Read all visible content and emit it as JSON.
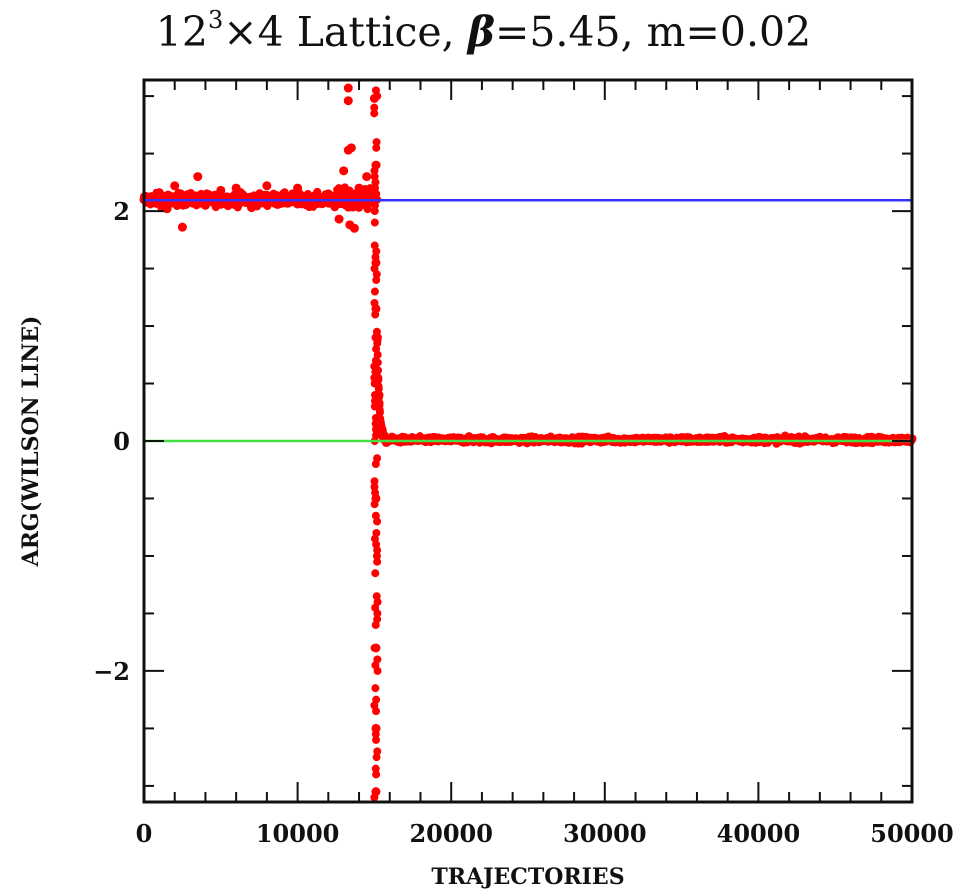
{
  "title_parts": {
    "prefix": "12",
    "superscript": "3",
    "middle": "×4 Lattice, ",
    "greek": "β",
    "suffix": "=5.45, m=0.02"
  },
  "chart_data": {
    "type": "scatter",
    "title": "12³×4 Lattice, β=5.45, m=0.02",
    "xlabel": "TRAJECTORIES",
    "ylabel": "ARG(WILSON LINE)",
    "xlim": [
      0,
      50000
    ],
    "ylim": [
      -3.14,
      3.14
    ],
    "xticks": [
      0,
      10000,
      20000,
      30000,
      40000,
      50000
    ],
    "xtick_labels": [
      "0",
      "10000",
      "20000",
      "30000",
      "40000",
      "50000"
    ],
    "yticks": [
      -2,
      0,
      2
    ],
    "ytick_labels": [
      "−2",
      "0",
      "2"
    ],
    "grid": false,
    "series": [
      {
        "kind": "scatter",
        "color": "#ff0000",
        "points": [
          [
            0,
            2.1
          ],
          [
            1000,
            2.16
          ],
          [
            1500,
            2.02
          ],
          [
            2000,
            2.22
          ],
          [
            2500,
            1.86
          ],
          [
            3000,
            2.15
          ],
          [
            3500,
            2.3
          ],
          [
            4000,
            2.05
          ],
          [
            5000,
            2.18
          ],
          [
            6000,
            2.2
          ],
          [
            7000,
            2.03
          ],
          [
            8000,
            2.22
          ],
          [
            9000,
            2.1
          ],
          [
            10000,
            2.2
          ],
          [
            11000,
            2.05
          ],
          [
            12000,
            2.15
          ],
          [
            12700,
            1.93
          ],
          [
            13000,
            2.35
          ],
          [
            13300,
            2.53
          ],
          [
            13300,
            2.96
          ],
          [
            13300,
            3.07
          ],
          [
            13400,
            1.88
          ],
          [
            13500,
            2.55
          ],
          [
            13700,
            1.85
          ],
          [
            14000,
            2.2
          ],
          [
            14500,
            2.3
          ],
          [
            14800,
            2.1
          ],
          [
            15000,
            2.98
          ],
          [
            15100,
            2.4
          ],
          [
            15100,
            1.55
          ],
          [
            15100,
            1.15
          ],
          [
            15100,
            0.6
          ],
          [
            15100,
            -0.5
          ],
          [
            15100,
            -1.8
          ],
          [
            15100,
            -2.5
          ],
          [
            15100,
            -3.05
          ],
          [
            15200,
            0.9
          ],
          [
            15300,
            0.4
          ],
          [
            15500,
            0.1
          ],
          [
            16000,
            0.02
          ],
          [
            20000,
            0.01
          ],
          [
            25000,
            -0.01
          ],
          [
            30000,
            0.02
          ],
          [
            35000,
            0.0
          ],
          [
            40000,
            0.03
          ],
          [
            45000,
            -0.01
          ],
          [
            50000,
            0.02
          ]
        ]
      }
    ],
    "reference_lines": [
      {
        "color": "#3333ff",
        "y": 2.094,
        "x_range": [
          0,
          50000
        ]
      },
      {
        "color": "#44dd44",
        "y": 0.0,
        "x_range": [
          0,
          50000
        ]
      }
    ]
  }
}
